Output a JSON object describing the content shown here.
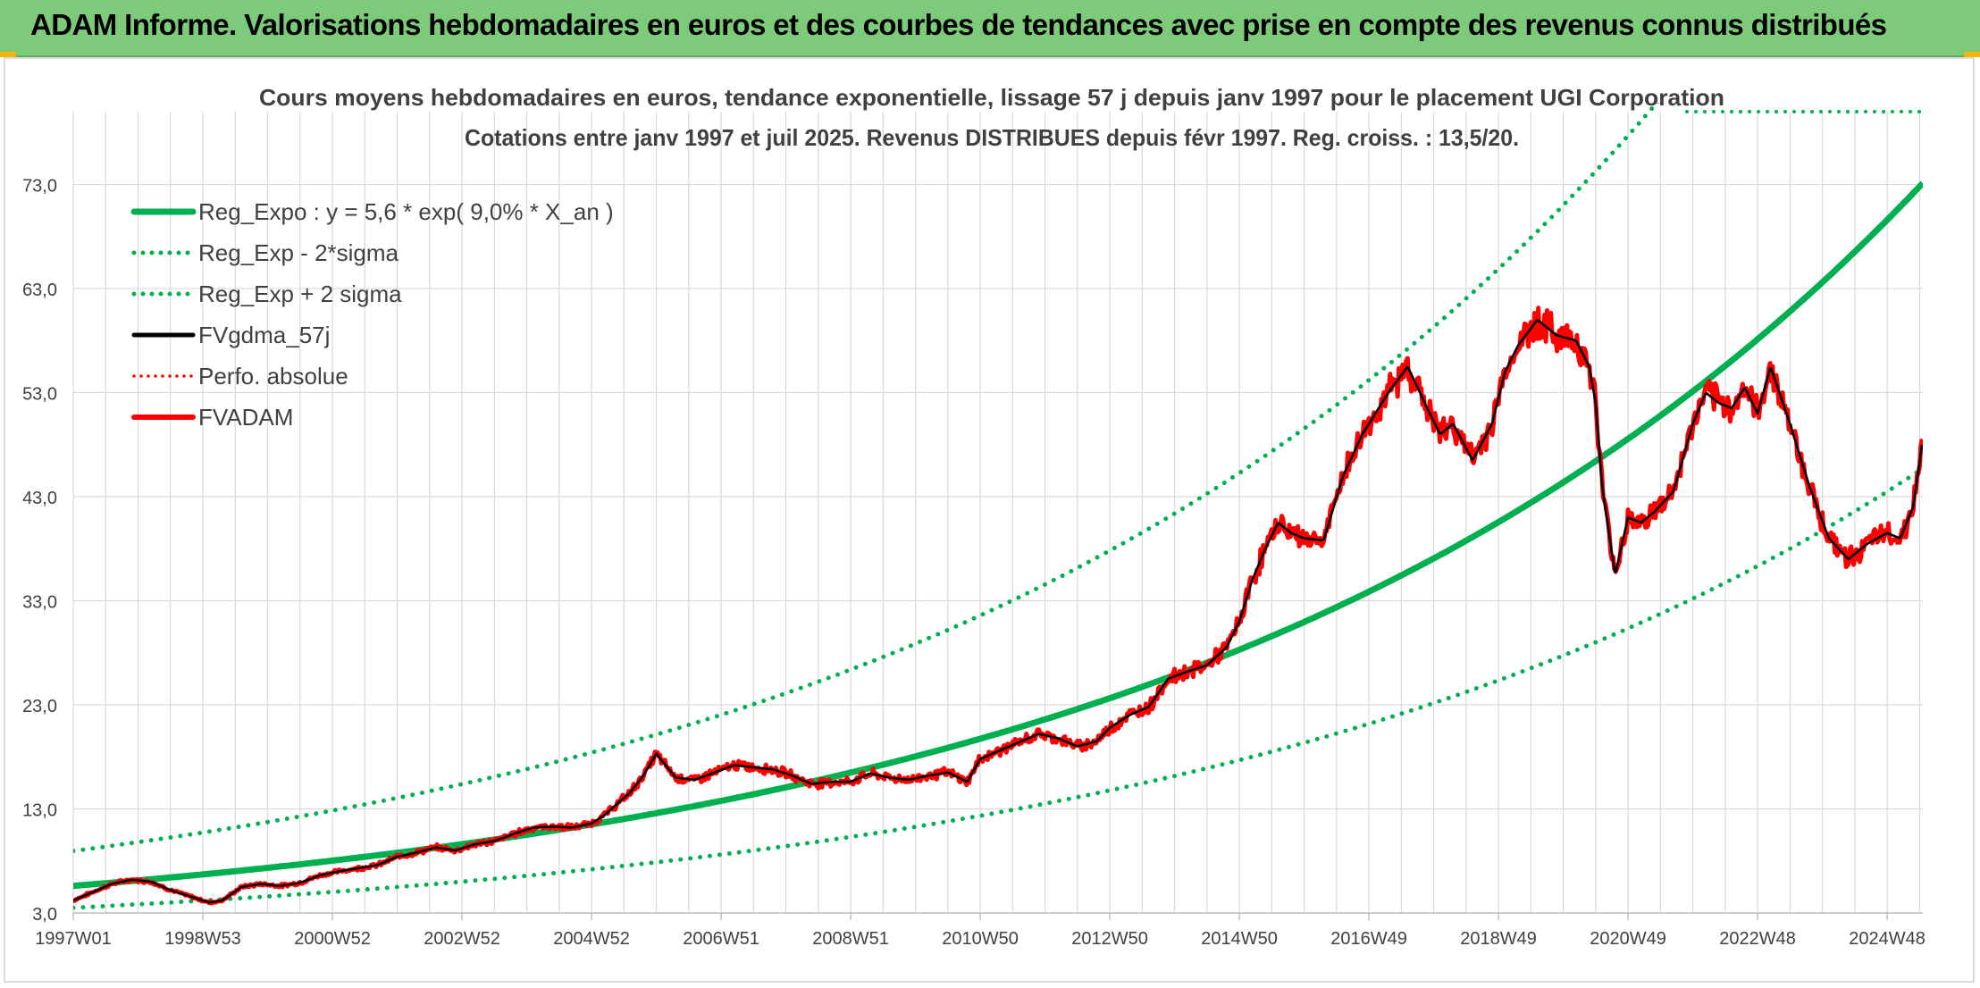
{
  "page": {
    "banner_title": "ADAM Informe. Valorisations hebdomadaires en euros et des courbes de tendances avec prise en compte des revenus connus distribués"
  },
  "colors": {
    "banner": "#7dcb7a",
    "reg_green": "#00b050",
    "red": "#ff0000",
    "black": "#000000",
    "grid": "#d9d9d9",
    "text": "#404040"
  },
  "chart_data": {
    "type": "line",
    "title": "Cours moyens hebdomadaires en euros, tendance exponentielle, lissage 57 j depuis janv 1997 pour le placement UGI Corporation",
    "subtitle": "Cotations entre janv 1997 et juil 2025. Revenus DISTRIBUES depuis févr 1997. Reg. croiss. : 13,5/20.",
    "xlabel": "",
    "ylabel": "",
    "xlim": [
      1997.0,
      2025.55
    ],
    "ylim": [
      3,
      80
    ],
    "grid": true,
    "legend_position": "top-left",
    "y_ticks": [
      "3,0",
      "13,0",
      "23,0",
      "33,0",
      "43,0",
      "53,0",
      "63,0",
      "73,0"
    ],
    "x_ticks": [
      {
        "label": "1997W01",
        "x": 1997.0
      },
      {
        "label": "1998W53",
        "x": 1999.0
      },
      {
        "label": "2000W52",
        "x": 2001.0
      },
      {
        "label": "2002W52",
        "x": 2003.0
      },
      {
        "label": "2004W52",
        "x": 2005.0
      },
      {
        "label": "2006W51",
        "x": 2007.0
      },
      {
        "label": "2008W51",
        "x": 2009.0
      },
      {
        "label": "2010W50",
        "x": 2011.0
      },
      {
        "label": "2012W50",
        "x": 2013.0
      },
      {
        "label": "2014W50",
        "x": 2015.0
      },
      {
        "label": "2016W49",
        "x": 2017.0
      },
      {
        "label": "2018W49",
        "x": 2019.0
      },
      {
        "label": "2020W49",
        "x": 2021.0
      },
      {
        "label": "2022W48",
        "x": 2023.0
      },
      {
        "label": "2024W48",
        "x": 2025.0
      }
    ],
    "reg_expo": {
      "a": 5.6,
      "rate": 0.09,
      "x0": 1997.0,
      "lower_factor": 0.625,
      "upper_factor": 1.6
    },
    "series": [
      {
        "name": "Reg_Expo : y = 5,6 * exp( 9,0% *  X_an )",
        "style": "solid-thick",
        "color": "#00b050",
        "function": "reg_expo"
      },
      {
        "name": "Reg_Exp - 2*sigma",
        "style": "dotted",
        "color": "#00b050",
        "function": "reg_expo_lower"
      },
      {
        "name": "Reg_Exp + 2 sigma",
        "style": "dotted",
        "color": "#00b050",
        "function": "reg_expo_upper"
      },
      {
        "name": "FVgdma_57j",
        "style": "solid",
        "color": "#000000",
        "data_ref": "fvadam",
        "smooth": true
      },
      {
        "name": "Perfo. absolue",
        "style": "dotted",
        "color": "#ff0000",
        "data_ref": "none"
      },
      {
        "name": "FVADAM",
        "style": "solid-thick",
        "color": "#ff0000",
        "data_ref": "fvadam"
      }
    ],
    "fvadam": {
      "x": [
        1997.0,
        1997.3,
        1997.6,
        1997.9,
        1998.2,
        1998.5,
        1998.8,
        1999.1,
        1999.3,
        1999.6,
        1999.9,
        2000.2,
        2000.5,
        2000.8,
        2001.1,
        2001.4,
        2001.7,
        2002.0,
        2002.3,
        2002.6,
        2002.9,
        2003.2,
        2003.5,
        2003.8,
        2004.1,
        2004.4,
        2004.7,
        2005.0,
        2005.2,
        2005.4,
        2005.6,
        2005.8,
        2006.0,
        2006.3,
        2006.6,
        2006.9,
        2007.2,
        2007.5,
        2007.8,
        2008.1,
        2008.4,
        2008.7,
        2009.0,
        2009.3,
        2009.6,
        2009.9,
        2010.2,
        2010.5,
        2010.8,
        2011.0,
        2011.3,
        2011.6,
        2011.9,
        2012.2,
        2012.5,
        2012.8,
        2013.0,
        2013.3,
        2013.6,
        2013.9,
        2014.2,
        2014.5,
        2014.8,
        2015.0,
        2015.2,
        2015.4,
        2015.6,
        2015.8,
        2016.0,
        2016.3,
        2016.6,
        2016.9,
        2017.1,
        2017.3,
        2017.6,
        2017.9,
        2018.1,
        2018.3,
        2018.6,
        2018.9,
        2019.1,
        2019.3,
        2019.6,
        2019.9,
        2020.2,
        2020.4,
        2020.5,
        2020.6,
        2020.8,
        2021.0,
        2021.2,
        2021.4,
        2021.7,
        2022.0,
        2022.2,
        2022.4,
        2022.6,
        2022.8,
        2023.0,
        2023.2,
        2023.5,
        2023.8,
        2024.1,
        2024.4,
        2024.7,
        2025.0,
        2025.2,
        2025.4,
        2025.55
      ],
      "y": [
        4.2,
        5.0,
        5.8,
        6.2,
        6.0,
        5.2,
        4.6,
        4.0,
        4.2,
        5.5,
        5.8,
        5.6,
        5.9,
        6.6,
        7.0,
        7.3,
        7.6,
        8.4,
        8.8,
        9.3,
        9.0,
        9.6,
        9.9,
        10.6,
        11.2,
        11.3,
        11.2,
        11.6,
        12.4,
        13.5,
        14.6,
        16.2,
        18.3,
        16.0,
        15.8,
        16.5,
        17.2,
        17.0,
        16.8,
        16.2,
        15.4,
        15.6,
        15.6,
        16.4,
        16.0,
        15.8,
        16.2,
        16.5,
        15.6,
        17.8,
        18.6,
        19.4,
        20.2,
        19.8,
        19.0,
        19.5,
        20.8,
        22.0,
        22.8,
        25.5,
        26.2,
        26.8,
        28.5,
        31.0,
        35.0,
        38.0,
        40.5,
        39.5,
        39.0,
        38.8,
        45.0,
        49.0,
        51.0,
        53.0,
        55.5,
        51.5,
        49.0,
        50.0,
        46.5,
        50.0,
        55.0,
        57.5,
        60.0,
        58.5,
        58.0,
        55.5,
        52.0,
        44.0,
        35.5,
        41.0,
        40.5,
        41.5,
        43.5,
        50.0,
        53.0,
        52.0,
        51.5,
        53.5,
        51.0,
        55.5,
        50.0,
        44.0,
        39.0,
        37.0,
        38.5,
        39.5,
        39.0,
        42.0,
        48.5
      ]
    }
  },
  "legend_items": [
    {
      "label": "Reg_Expo : y = 5,6 * exp( 9,0% *  X_an )"
    },
    {
      "label": "Reg_Exp - 2*sigma"
    },
    {
      "label": "Reg_Exp + 2 sigma"
    },
    {
      "label": "FVgdma_57j"
    },
    {
      "label": "Perfo. absolue"
    },
    {
      "label": "FVADAM"
    }
  ]
}
